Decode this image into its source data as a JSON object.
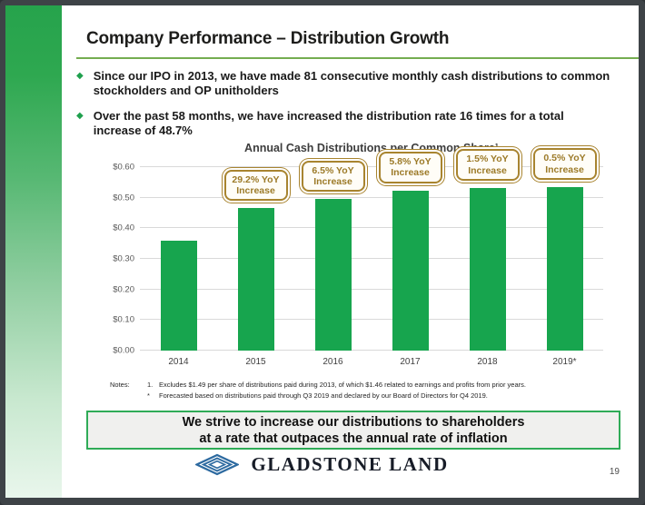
{
  "header": {
    "title": "Company Performance – Distribution Growth"
  },
  "bullets": [
    {
      "text": "Since our IPO in 2013, we have made 81 consecutive monthly cash distributions to common stockholders and OP unitholders"
    },
    {
      "text": "Over the past 58 months, we have increased the distribution rate 16 times for a total increase of 48.7%"
    }
  ],
  "chart_data": {
    "type": "bar",
    "title": "Annual Cash Distributions per Common Share¹",
    "categories": [
      "2014",
      "2015",
      "2016",
      "2017",
      "2018",
      "2019*"
    ],
    "values": [
      0.36,
      0.465,
      0.495,
      0.524,
      0.532,
      0.535
    ],
    "ylim": [
      0,
      0.6
    ],
    "ytick_step": 0.1,
    "ytick_labels": [
      "$0.00",
      "$0.10",
      "$0.20",
      "$0.30",
      "$0.40",
      "$0.50",
      "$0.60"
    ],
    "grid": true,
    "bar_color": "#17a54e",
    "annotation_color": "#a8842f",
    "annotations": [
      {
        "category": "2015",
        "text": "29.2% YoY Increase"
      },
      {
        "category": "2016",
        "text": "6.5% YoY Increase"
      },
      {
        "category": "2017",
        "text": "5.8% YoY Increase"
      },
      {
        "category": "2018",
        "text": "1.5% YoY Increase"
      },
      {
        "category": "2019*",
        "text": "0.5% YoY Increase"
      }
    ]
  },
  "notes": {
    "label": "Notes:",
    "items": [
      {
        "marker": "1.",
        "text": "Excludes $1.49 per share of distributions paid during 2013, of which $1.46 related to earnings and profits from prior years."
      },
      {
        "marker": "*",
        "text": "Forecasted based on distributions paid through Q3 2019 and declared by our Board of Directors for Q4 2019."
      }
    ]
  },
  "banner": {
    "line1": "We strive to increase our distributions to shareholders",
    "line2": "at a rate that outpaces the annual rate of inflation"
  },
  "footer": {
    "logo_text": "GLADSTONE LAND",
    "page_number": "19"
  },
  "colors": {
    "accent_green": "#26a34c",
    "rule_green": "#74ad50",
    "banner_border_green": "#2fab57",
    "callout_gold": "#a8842f",
    "logo_blue": "#2d6aa0",
    "frame_gray": "#3e4347"
  }
}
